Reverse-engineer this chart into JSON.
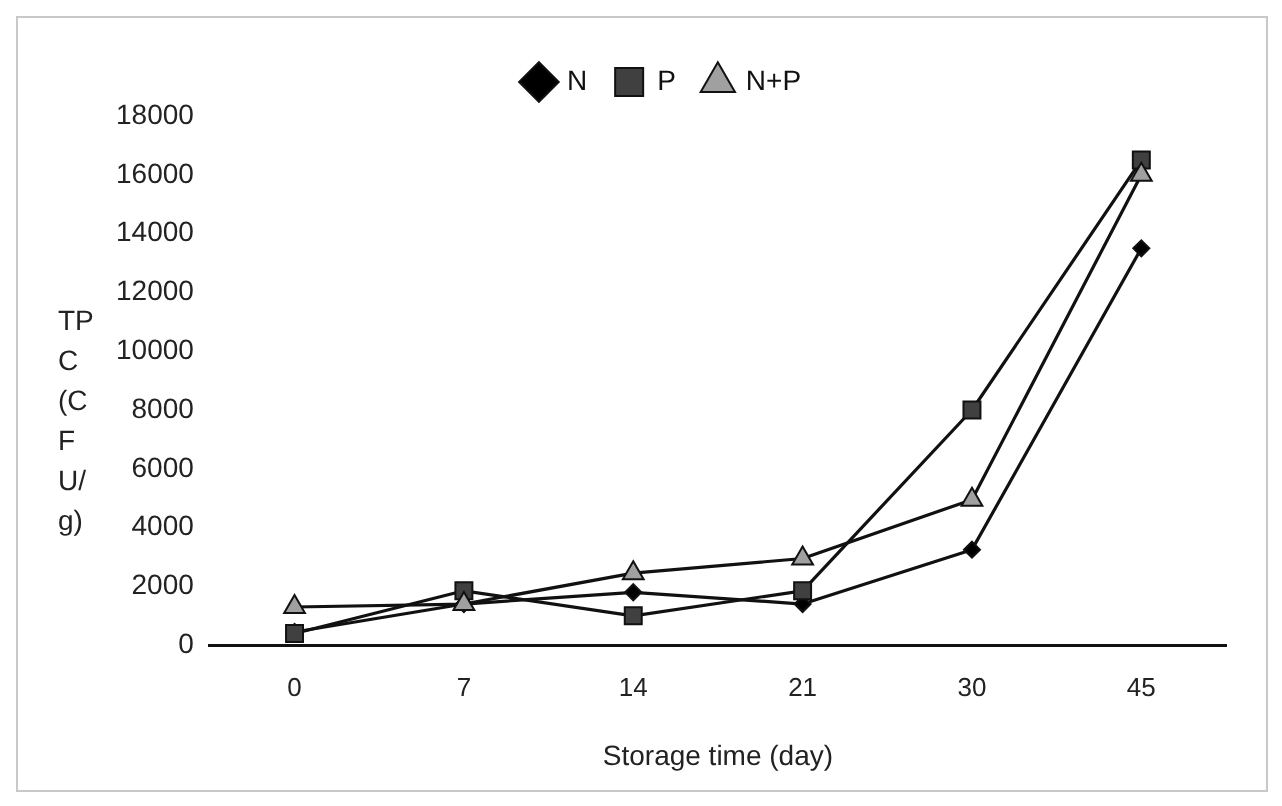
{
  "chart_data": {
    "type": "line",
    "xlabel": "Storage time (day)",
    "ylabel": "TPC (CFU/g)",
    "categories": [
      "0",
      "7",
      "14",
      "21",
      "30",
      "45"
    ],
    "series": [
      {
        "name": "N",
        "color": "#000000",
        "marker": "diamond",
        "values": [
          450,
          1400,
          1800,
          1400,
          3250,
          13500
        ]
      },
      {
        "name": "P",
        "color": "#404040",
        "marker": "square",
        "values": [
          400,
          1850,
          1000,
          1850,
          8000,
          16500
        ]
      },
      {
        "name": "N+P",
        "color": "#a0a0a0",
        "marker": "triangle",
        "values": [
          1300,
          1400,
          2450,
          2950,
          4950,
          16000
        ]
      }
    ],
    "ylim": [
      0,
      18000
    ],
    "yticks": [
      0,
      2000,
      4000,
      6000,
      8000,
      10000,
      12000,
      14000,
      16000,
      18000
    ],
    "grid": false,
    "legend": "top"
  }
}
